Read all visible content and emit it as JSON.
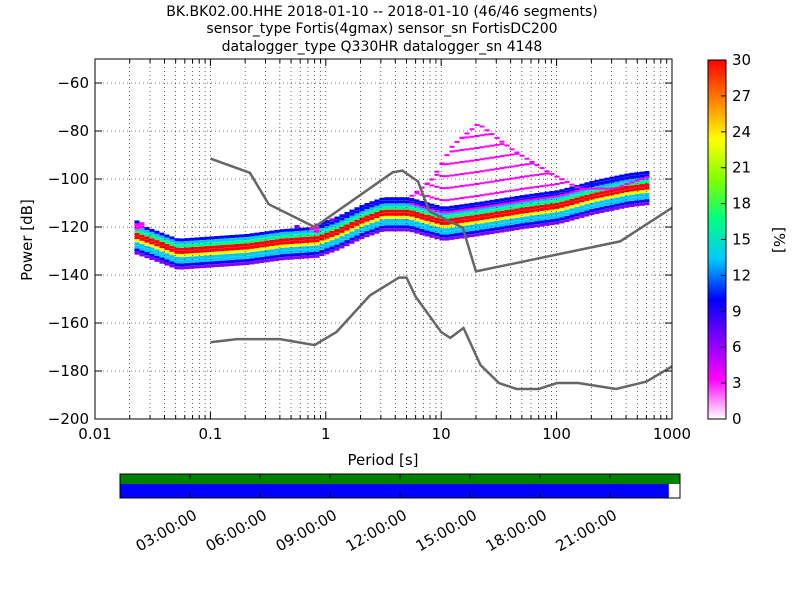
{
  "title_lines": [
    "BK.BK02.00.HHE   2018-01-10 -- 2018-01-10  (46/46 segments)",
    "sensor_type Fortis(4gmax) sensor_sn FortisDC200",
    "datalogger_type Q330HR datalogger_sn 4148"
  ],
  "chart_data": {
    "type": "heatmap",
    "xlabel": "Period [s]",
    "ylabel": "Power [dB]",
    "xscale": "log",
    "xlim": [
      0.01,
      1000
    ],
    "ylim": [
      -200,
      -50
    ],
    "xticks": [
      {
        "value": 0.01,
        "label": "0.01"
      },
      {
        "value": 0.1,
        "label": "0.1"
      },
      {
        "value": 1,
        "label": "1"
      },
      {
        "value": 10,
        "label": "10"
      },
      {
        "value": 100,
        "label": "100"
      },
      {
        "value": 1000,
        "label": "1000"
      }
    ],
    "yticks": [
      {
        "value": -60,
        "label": "−60"
      },
      {
        "value": -80,
        "label": "−80"
      },
      {
        "value": -100,
        "label": "−100"
      },
      {
        "value": -120,
        "label": "−120"
      },
      {
        "value": -140,
        "label": "−140"
      },
      {
        "value": -160,
        "label": "−160"
      },
      {
        "value": -180,
        "label": "−180"
      },
      {
        "value": -200,
        "label": "−200"
      }
    ],
    "grid": true,
    "colorbar": {
      "label": "[%]",
      "range": [
        0,
        30
      ],
      "ticks": [
        "0",
        "3",
        "6",
        "9",
        "12",
        "15",
        "18",
        "21",
        "24",
        "27",
        "30"
      ],
      "colormap": "pqlx",
      "colors": [
        "#ffffff",
        "#ff00ff",
        "#8000ff",
        "#0000ff",
        "#00c8ff",
        "#00ff80",
        "#80ff00",
        "#ffff00",
        "#ff8000",
        "#ff0000"
      ]
    },
    "noise_models": [
      {
        "role": "high",
        "color": "#666666",
        "points": [
          [
            0.1,
            -91.5
          ],
          [
            0.22,
            -97.4
          ],
          [
            0.32,
            -110.5
          ],
          [
            0.8,
            -120.0
          ],
          [
            3.8,
            -97.2
          ],
          [
            4.6,
            -96.5
          ],
          [
            6.3,
            -101.0
          ],
          [
            7.9,
            -113.5
          ],
          [
            15.4,
            -120.3
          ],
          [
            20,
            -138.5
          ],
          [
            354.8,
            -126.0
          ],
          [
            1000,
            -112
          ]
        ]
      },
      {
        "role": "low",
        "color": "#666666",
        "points": [
          [
            0.1,
            -168.0
          ],
          [
            0.17,
            -166.7
          ],
          [
            0.4,
            -166.7
          ],
          [
            0.8,
            -169.2
          ],
          [
            1.24,
            -163.7
          ],
          [
            2.4,
            -148.6
          ],
          [
            4.3,
            -141.1
          ],
          [
            5.0,
            -141.1
          ],
          [
            6.0,
            -149.0
          ],
          [
            10.0,
            -163.8
          ],
          [
            12.0,
            -166.2
          ],
          [
            15.6,
            -162.1
          ],
          [
            21.9,
            -177.5
          ],
          [
            31.6,
            -185.0
          ],
          [
            45,
            -187.5
          ],
          [
            70,
            -187.5
          ],
          [
            101,
            -185.0
          ],
          [
            154,
            -185.0
          ],
          [
            328,
            -187.5
          ],
          [
            600,
            -184.4
          ],
          [
            1000,
            -178.1
          ]
        ]
      }
    ],
    "psd_mode": [
      [
        0.02,
        -123
      ],
      [
        0.03,
        -126
      ],
      [
        0.05,
        -130
      ],
      [
        0.1,
        -129
      ],
      [
        0.2,
        -128
      ],
      [
        0.4,
        -126
      ],
      [
        0.8,
        -125
      ],
      [
        1.2,
        -122
      ],
      [
        2,
        -117
      ],
      [
        3,
        -114
      ],
      [
        5,
        -114
      ],
      [
        7,
        -116
      ],
      [
        10,
        -118
      ],
      [
        20,
        -116
      ],
      [
        50,
        -113
      ],
      [
        100,
        -111
      ],
      [
        200,
        -107
      ],
      [
        400,
        -104
      ],
      [
        600,
        -103
      ]
    ],
    "psd_upper_branch": [
      [
        0.02,
        -120
      ],
      [
        0.04,
        -117
      ],
      [
        0.08,
        -110
      ],
      [
        0.15,
        -110
      ],
      [
        0.25,
        -108
      ],
      [
        0.4,
        -113
      ],
      [
        0.8,
        -121
      ]
    ],
    "psd_peak_branch": [
      [
        5,
        -108
      ],
      [
        8,
        -100
      ],
      [
        12,
        -86
      ],
      [
        20,
        -77
      ],
      [
        40,
        -88
      ],
      [
        80,
        -97
      ],
      [
        150,
        -104
      ],
      [
        300,
        -104
      ],
      [
        600,
        -99
      ]
    ],
    "time_coverage": {
      "ticks": [
        "03:00:00",
        "06:00:00",
        "09:00:00",
        "12:00:00",
        "15:00:00",
        "18:00:00",
        "21:00:00"
      ],
      "data_fraction": 0.98,
      "colors": {
        "segments": "#008000",
        "data": "#0000ff"
      }
    }
  }
}
